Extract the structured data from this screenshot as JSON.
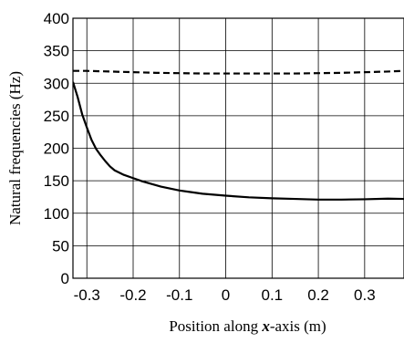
{
  "chart_data": {
    "type": "line",
    "xlabel_parts": [
      "Position along ",
      "x",
      "-axis (m)"
    ],
    "ylabel": "Natural frequencies (Hz)",
    "xlim": [
      -0.33,
      0.385
    ],
    "ylim": [
      0,
      400
    ],
    "x_ticks": [
      -0.3,
      -0.2,
      -0.1,
      0,
      0.1,
      0.2,
      0.3
    ],
    "x_tick_labels": [
      "-0.3",
      "-0.2",
      "-0.1",
      "0",
      "0.1",
      "0.2",
      "0.3"
    ],
    "y_ticks": [
      0,
      50,
      100,
      150,
      200,
      250,
      300,
      350,
      400
    ],
    "y_tick_labels": [
      "0",
      "50",
      "100",
      "150",
      "200",
      "250",
      "300",
      "350",
      "400"
    ],
    "grid": true,
    "series": [
      {
        "style": "dashed",
        "x": [
          -0.33,
          -0.3,
          -0.25,
          -0.2,
          -0.15,
          -0.1,
          -0.05,
          0,
          0.05,
          0.1,
          0.15,
          0.2,
          0.25,
          0.3,
          0.35,
          0.385
        ],
        "y": [
          319,
          319,
          318,
          317,
          316,
          315.5,
          315,
          315,
          315,
          315,
          315,
          315.5,
          316,
          317,
          318,
          319
        ]
      },
      {
        "style": "solid",
        "x": [
          -0.33,
          -0.32,
          -0.31,
          -0.3,
          -0.29,
          -0.28,
          -0.27,
          -0.26,
          -0.25,
          -0.24,
          -0.22,
          -0.2,
          -0.18,
          -0.16,
          -0.14,
          -0.12,
          -0.1,
          -0.08,
          -0.05,
          0,
          0.05,
          0.1,
          0.15,
          0.2,
          0.25,
          0.3,
          0.35,
          0.385
        ],
        "y": [
          302,
          279,
          252,
          232,
          213,
          199,
          189,
          180,
          172,
          166,
          159,
          154,
          149,
          145,
          141,
          138,
          135,
          133,
          130,
          127,
          124.5,
          123,
          122,
          121,
          121,
          121.5,
          122.5,
          122
        ]
      }
    ]
  }
}
